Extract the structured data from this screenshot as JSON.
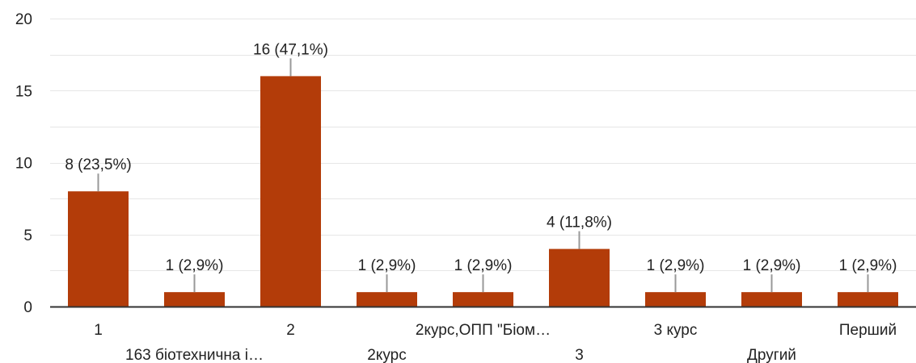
{
  "chart_data": {
    "type": "bar",
    "categories": [
      "1",
      "163 біотехнична і…",
      "2",
      "2курс",
      "2курс,ОПП \"Біом…",
      "3",
      "3 курс",
      "Другий",
      "Перший"
    ],
    "values": [
      8,
      1,
      16,
      1,
      1,
      4,
      1,
      1,
      1
    ],
    "data_labels": [
      "8 (23,5%)",
      "1 (2,9%)",
      "16 (47,1%)",
      "1 (2,9%)",
      "1 (2,9%)",
      "4 (11,8%)",
      "1 (2,9%)",
      "1 (2,9%)",
      "1 (2,9%)"
    ],
    "y_ticks": [
      0,
      5,
      10,
      15,
      20
    ],
    "ylim": [
      0,
      20
    ],
    "grid": true,
    "bar_color": "#b33c09",
    "grid_color": "#e6e6e6",
    "leader_color": "#999999",
    "title": "",
    "xlabel": "",
    "ylabel": ""
  }
}
